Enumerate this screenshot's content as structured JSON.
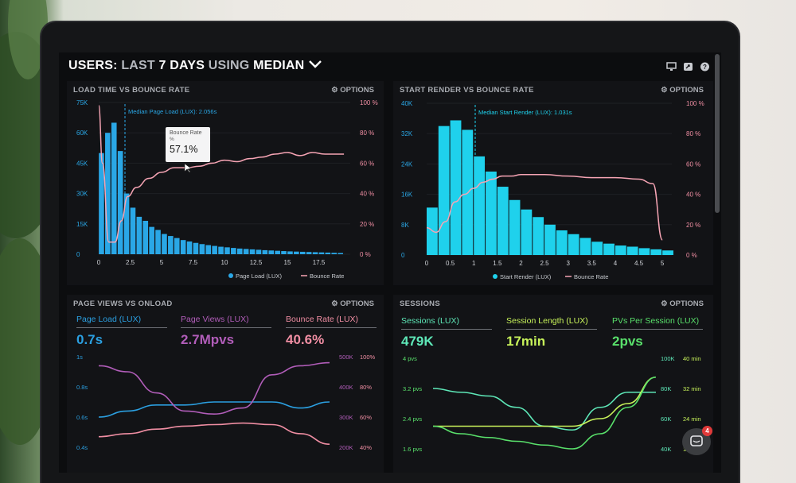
{
  "header": {
    "title_a": "USERS:",
    "title_b": "LAST",
    "title_c": "7 DAYS",
    "title_d": "USING",
    "title_e": "MEDIAN",
    "icons": [
      "monitor-icon",
      "share-icon",
      "help-icon"
    ]
  },
  "panels": {
    "load": {
      "title": "LOAD TIME VS BOUNCE RATE",
      "options": "OPTIONS",
      "median_label": "Median Page Load (LUX): 2.056s",
      "tooltip_title": "Bounce Rate",
      "tooltip_sub": "%",
      "tooltip_value": "57.1%",
      "legend_a": "Page Load (LUX)",
      "legend_b": "Bounce Rate",
      "y_left": [
        "75K",
        "60K",
        "45K",
        "30K",
        "15K",
        "0"
      ],
      "y_right": [
        "100 %",
        "80 %",
        "60 %",
        "40 %",
        "20 %",
        "0 %"
      ],
      "x_ticks": [
        "0",
        "2.5",
        "5",
        "7.5",
        "10",
        "12.5",
        "15",
        "17.5"
      ]
    },
    "render": {
      "title": "START RENDER VS BOUNCE RATE",
      "options": "OPTIONS",
      "median_label": "Median Start Render (LUX): 1.031s",
      "legend_a": "Start Render (LUX)",
      "legend_b": "Bounce Rate",
      "y_left": [
        "40K",
        "32K",
        "24K",
        "16K",
        "8K",
        "0"
      ],
      "y_right": [
        "100 %",
        "80 %",
        "60 %",
        "40 %",
        "20 %",
        "0 %"
      ],
      "x_ticks": [
        "0",
        "0.5",
        "1",
        "1.5",
        "2",
        "2.5",
        "3",
        "3.5",
        "4",
        "4.5",
        "5"
      ]
    },
    "pageviews": {
      "title": "PAGE VIEWS VS ONLOAD",
      "options": "OPTIONS",
      "metrics": [
        {
          "label": "Page Load (LUX)",
          "value": "0.7s",
          "color": "#2b9fe0"
        },
        {
          "label": "Page Views (LUX)",
          "value": "2.7Mpvs",
          "color": "#b15db9"
        },
        {
          "label": "Bounce Rate (LUX)",
          "value": "40.6%",
          "color": "#f08ea3"
        }
      ],
      "y_left": [
        "1s",
        "0.8s",
        "0.6s",
        "0.4s"
      ],
      "y_mid": [
        "500K",
        "400K",
        "300K",
        "200K"
      ],
      "y_right": [
        "100%",
        "80%",
        "60%",
        "40%"
      ]
    },
    "sessions": {
      "title": "SESSIONS",
      "options": "OPTIONS",
      "metrics": [
        {
          "label": "Sessions (LUX)",
          "value": "479K",
          "color": "#5ee8b8"
        },
        {
          "label": "Session Length (LUX)",
          "value": "17min",
          "color": "#c7f25a"
        },
        {
          "label": "PVs Per Session (LUX)",
          "value": "2pvs",
          "color": "#59e06b"
        }
      ],
      "y_left": [
        "4 pvs",
        "3.2 pvs",
        "2.4 pvs",
        "1.6 pvs"
      ],
      "y_mid": [
        "100K",
        "80K",
        "60K",
        "40K"
      ],
      "y_right": [
        "40 min",
        "32 min",
        "24 min",
        "16 min"
      ]
    }
  },
  "chat": {
    "badge": "4"
  },
  "chart_data": [
    {
      "type": "bar",
      "title": "LOAD TIME VS BOUNCE RATE",
      "x": [
        0.25,
        0.75,
        1.25,
        1.75,
        2.25,
        2.75,
        3.25,
        3.75,
        4.25,
        4.75,
        5.25,
        5.75,
        6.25,
        6.75,
        7.25,
        7.75,
        8.25,
        8.75,
        9.25,
        9.75,
        10.25,
        10.75,
        11.25,
        11.75,
        12.25,
        12.75,
        13.25,
        13.75,
        14.25,
        14.75,
        15.25,
        15.75,
        16.25,
        16.75,
        17.25,
        17.75,
        18.25,
        18.75,
        19.25
      ],
      "series": [
        {
          "name": "Page Load (LUX)",
          "values": [
            50000,
            60000,
            65000,
            51000,
            30000,
            23000,
            18500,
            16500,
            13500,
            12000,
            10000,
            9000,
            8000,
            7000,
            6300,
            5600,
            5000,
            4500,
            4100,
            3700,
            3400,
            3100,
            2800,
            2600,
            2400,
            2200,
            2000,
            1850,
            1700,
            1550,
            1400,
            1300,
            1200,
            1100,
            1000,
            900,
            800,
            700,
            600
          ]
        },
        {
          "name": "Bounce Rate",
          "x": [
            0,
            0.3,
            0.8,
            1.3,
            1.8,
            2.3,
            3,
            4,
            5,
            6,
            7,
            8,
            9,
            10,
            11,
            12,
            13,
            14,
            15,
            16,
            17,
            18,
            19.5
          ],
          "values": [
            98,
            60,
            8,
            8,
            22,
            38,
            44,
            50,
            54,
            57,
            57,
            58,
            60,
            62,
            61,
            63,
            64,
            66,
            67,
            65,
            67,
            66,
            66
          ]
        }
      ],
      "ylim": [
        0,
        75000
      ],
      "y2lim": [
        0,
        100
      ],
      "xlim": [
        0,
        20
      ]
    },
    {
      "type": "bar",
      "title": "START RENDER VS BOUNCE RATE",
      "x": [
        0.125,
        0.375,
        0.625,
        0.875,
        1.125,
        1.375,
        1.625,
        1.875,
        2.125,
        2.375,
        2.625,
        2.875,
        3.125,
        3.375,
        3.625,
        3.875,
        4.125,
        4.375,
        4.625,
        4.875,
        5.125
      ],
      "series": [
        {
          "name": "Start Render (LUX)",
          "values": [
            12500,
            34000,
            35500,
            33000,
            26000,
            22000,
            18000,
            14500,
            12000,
            10000,
            8000,
            6500,
            5500,
            4500,
            3500,
            3000,
            2500,
            2200,
            1800,
            1500,
            1200
          ]
        },
        {
          "name": "Bounce Rate",
          "x": [
            0,
            0.2,
            0.4,
            0.6,
            0.8,
            1.0,
            1.2,
            1.4,
            1.6,
            1.8,
            2.0,
            2.5,
            3.0,
            3.5,
            4.0,
            4.5,
            4.8,
            5.0
          ],
          "values": [
            18,
            15,
            22,
            35,
            40,
            44,
            48,
            50,
            52,
            52,
            53,
            53,
            52,
            51,
            51,
            50,
            47,
            10
          ]
        }
      ],
      "ylim": [
        0,
        40000
      ],
      "y2lim": [
        0,
        100
      ],
      "xlim": [
        0,
        5.2
      ]
    },
    {
      "type": "line",
      "title": "PAGE VIEWS VS ONLOAD",
      "x": [
        0,
        1,
        2,
        3,
        4,
        5,
        6,
        7,
        8
      ],
      "series": [
        {
          "name": "Page Load (LUX)",
          "values": [
            0.6,
            0.64,
            0.68,
            0.68,
            0.7,
            0.7,
            0.7,
            0.66,
            0.7
          ]
        },
        {
          "name": "Page Views (LUX)",
          "values": [
            470000,
            450000,
            380000,
            320000,
            310000,
            330000,
            440000,
            470000,
            480000
          ]
        },
        {
          "name": "Bounce Rate (LUX)",
          "values": [
            47,
            49,
            52,
            54,
            55,
            56,
            55,
            49,
            42
          ]
        }
      ]
    },
    {
      "type": "line",
      "title": "SESSIONS",
      "x": [
        0,
        1,
        2,
        3,
        4,
        5,
        6,
        7,
        8
      ],
      "series": [
        {
          "name": "Sessions (LUX)",
          "values": [
            3.2,
            3.1,
            3.0,
            2.7,
            2.2,
            2.1,
            2.7,
            3.1,
            3.1
          ]
        },
        {
          "name": "Session Length (LUX)",
          "values": [
            22,
            22,
            22,
            22,
            22,
            22,
            24,
            28,
            35
          ]
        },
        {
          "name": "PVs Per Session (LUX)",
          "values": [
            2.2,
            2.0,
            1.9,
            1.8,
            1.7,
            1.6,
            2.0,
            2.7,
            3.5
          ]
        }
      ]
    }
  ]
}
